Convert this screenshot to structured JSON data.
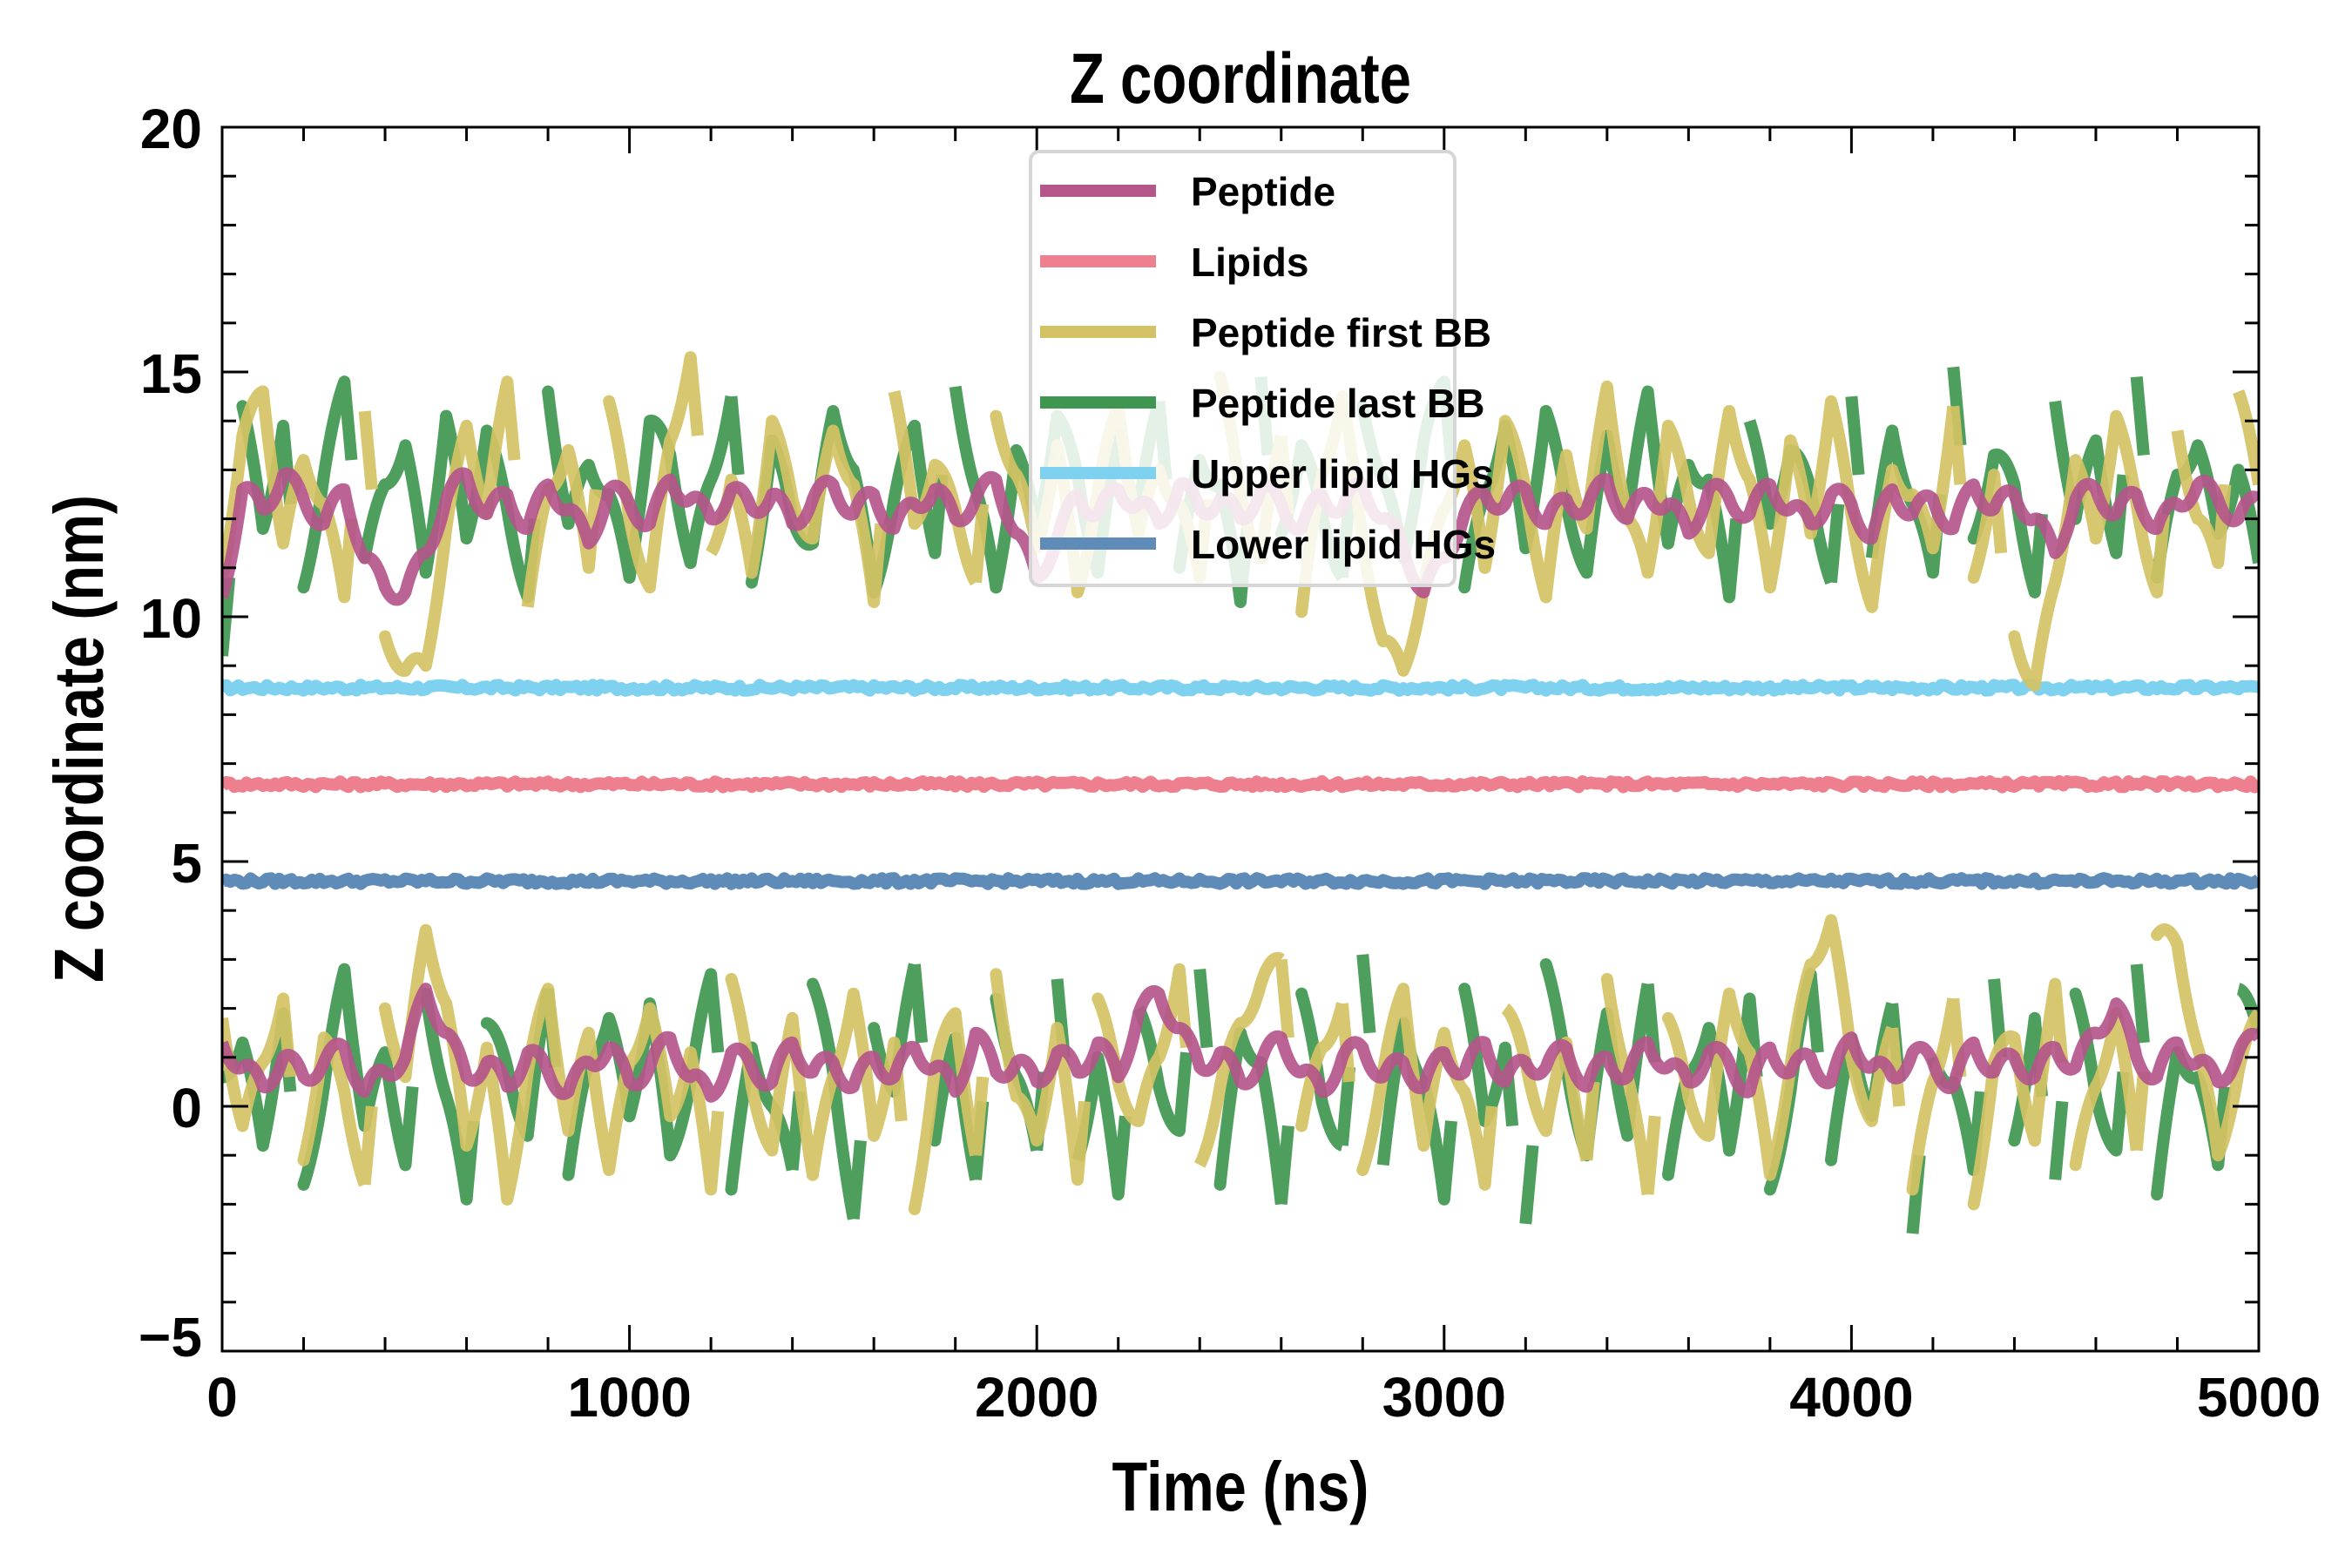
{
  "chart_data": {
    "type": "line",
    "title": "Z coordinate",
    "xlabel": "Time (ns)",
    "ylabel": "Z coordinate (nm)",
    "xlim": [
      0,
      5000
    ],
    "ylim": [
      -5,
      20
    ],
    "xticks": [
      0,
      1000,
      2000,
      3000,
      4000,
      5000
    ],
    "xtick_labels": [
      "0",
      "1000",
      "2000",
      "3000",
      "4000",
      "5000"
    ],
    "yticks": [
      -5,
      0,
      5,
      10,
      15,
      20
    ],
    "ytick_labels": [
      "−5",
      "0",
      "5",
      "10",
      "15",
      "20"
    ],
    "x_minor_step": 200,
    "y_minor_step": 1,
    "grid": false,
    "legend_position": "upper-center",
    "x_step": 50,
    "legend": [
      {
        "label": "Peptide",
        "color": "#B5568B"
      },
      {
        "label": "Lipids",
        "color": "#EE7F8E"
      },
      {
        "label": "Peptide first BB",
        "color": "#D4C365"
      },
      {
        "label": "Peptide last BB",
        "color": "#3F9650"
      },
      {
        "label": "Upper lipid HGs",
        "color": "#7ED2EF"
      },
      {
        "label": "Lower lipid HGs",
        "color": "#5E8BB8"
      }
    ],
    "series": [
      {
        "name": "Upper lipid HGs",
        "color": "#7ED2EF",
        "z": 1,
        "flat": 8.55
      },
      {
        "name": "Lipids",
        "color": "#EE7F8E",
        "z": 2,
        "flat": 6.58
      },
      {
        "name": "Lower lipid HGs",
        "color": "#5E8BB8",
        "z": 3,
        "flat": 4.6
      },
      {
        "name": "Peptide last BB",
        "color": "#3F9650",
        "z": 4,
        "values": [
          9.2,
          14.3,
          11.8,
          13.9,
          10.6,
          12.9,
          14.8,
          11.2,
          12.7,
          13.5,
          10.9,
          14.1,
          11.6,
          13.8,
          12.2,
          10.4,
          14.6,
          11.9,
          13.1,
          12.5,
          10.8,
          14.0,
          13.3,
          11.1,
          12.8,
          14.5,
          10.7,
          13.6,
          12.0,
          11.5,
          14.2,
          13.0,
          10.5,
          12.4,
          13.9,
          11.3,
          14.7,
          12.6,
          10.6,
          13.4,
          11.8,
          14.1,
          12.9,
          10.9,
          13.7,
          12.2,
          14.4,
          11.0,
          13.2,
          12.7,
          10.3,
          14.9,
          11.7,
          13.5,
          12.1,
          10.8,
          14.3,
          12.8,
          11.2,
          13.6,
          14.8,
          10.6,
          12.5,
          13.9,
          11.4,
          14.2,
          12.3,
          10.9,
          13.7,
          12.0,
          14.6,
          11.5,
          13.1,
          12.8,
          10.4,
          14.0,
          11.9,
          13.4,
          12.6,
          10.7,
          14.5,
          11.2,
          13.8,
          12.3,
          10.9,
          15.1,
          11.6,
          13.3,
          12.7,
          10.5,
          14.4,
          12.0,
          13.6,
          11.3,
          14.9,
          10.8,
          12.9,
          13.5,
          11.7,
          13.0,
          11.1
        ],
        "lower_values": [
          0.6,
          1.3,
          -0.8,
          1.9,
          -1.6,
          0.4,
          2.8,
          -0.4,
          1.1,
          -1.2,
          2.3,
          0.2,
          -1.9,
          1.7,
          0.8,
          -0.6,
          2.4,
          -1.4,
          0.9,
          1.8,
          -0.2,
          2.1,
          -1.0,
          0.5,
          2.7,
          -1.7,
          1.2,
          0.0,
          -1.3,
          2.5,
          0.7,
          -2.3,
          1.6,
          0.3,
          2.9,
          -0.7,
          1.4,
          -1.5,
          2.2,
          0.6,
          -0.9,
          2.6,
          -1.1,
          1.0,
          -1.8,
          2.0,
          0.4,
          -0.5,
          2.8,
          -1.6,
          1.5,
          0.9,
          -2.0,
          2.3,
          0.1,
          -0.8,
          3.1,
          -1.2,
          1.7,
          0.5,
          -1.9,
          2.4,
          -0.3,
          1.2,
          -2.4,
          2.9,
          0.8,
          -1.0,
          1.9,
          -0.6,
          2.5,
          -1.4,
          0.7,
          1.6,
          -0.9,
          2.2,
          -1.7,
          0.3,
          2.7,
          -1.1,
          1.4,
          -0.2,
          2.1,
          -2.6,
          1.0,
          0.5,
          -1.3,
          2.6,
          -0.7,
          1.8,
          -1.5,
          2.3,
          0.2,
          -0.9,
          2.9,
          -1.8,
          1.1,
          0.6,
          -1.2,
          2.4,
          1.5
        ]
      },
      {
        "name": "Peptide first BB",
        "color": "#D4C365",
        "z": 5,
        "values": [
          10.8,
          13.7,
          14.6,
          11.5,
          13.2,
          12.3,
          10.4,
          14.2,
          9.6,
          8.9,
          9.0,
          11.8,
          13.9,
          12.1,
          14.8,
          10.2,
          12.6,
          13.4,
          11.0,
          14.4,
          12.0,
          10.6,
          13.6,
          15.3,
          11.3,
          12.8,
          10.9,
          14.0,
          12.4,
          11.6,
          13.8,
          12.7,
          10.3,
          14.6,
          11.9,
          13.1,
          12.2,
          10.7,
          14.1,
          12.9,
          11.4,
          13.5,
          10.5,
          12.6,
          14.3,
          11.7,
          13.0,
          12.3,
          10.8,
          14.9,
          12.5,
          11.2,
          13.7,
          10.1,
          12.9,
          14.5,
          11.5,
          9.5,
          8.9,
          10.6,
          12.2,
          13.5,
          11.0,
          14.0,
          12.6,
          10.4,
          13.3,
          11.8,
          14.7,
          12.0,
          10.9,
          13.9,
          12.4,
          11.3,
          14.2,
          12.8,
          10.6,
          13.6,
          11.7,
          14.4,
          12.1,
          10.2,
          13.0,
          12.5,
          11.4,
          14.3,
          10.8,
          12.9,
          9.6,
          8.6,
          10.7,
          13.2,
          11.6,
          14.1,
          12.3,
          10.5,
          13.8,
          12.0,
          11.1,
          14.6,
          12.7
        ],
        "lower_values": [
          1.8,
          -0.4,
          0.9,
          2.2,
          -1.1,
          1.4,
          0.3,
          -1.6,
          2.0,
          0.6,
          3.6,
          2.1,
          -0.8,
          1.2,
          -1.9,
          0.7,
          2.4,
          -0.5,
          1.5,
          -1.3,
          0.9,
          2.0,
          -0.2,
          1.1,
          -1.7,
          2.6,
          0.4,
          -0.9,
          1.8,
          -1.4,
          0.6,
          2.3,
          -0.6,
          1.3,
          -2.1,
          0.8,
          1.9,
          -1.0,
          2.7,
          0.2,
          -0.7,
          1.6,
          -1.5,
          2.2,
          0.5,
          -0.3,
          1.0,
          2.8,
          -1.2,
          0.4,
          1.7,
          2.5,
          3.0,
          -0.4,
          1.2,
          2.1,
          -1.3,
          0.7,
          2.4,
          -0.8,
          1.5,
          0.3,
          -1.6,
          2.0,
          0.9,
          -0.5,
          1.3,
          -1.1,
          2.6,
          0.6,
          -1.8,
          1.8,
          0.2,
          -0.6,
          2.3,
          1.1,
          -1.4,
          0.8,
          2.9,
          3.8,
          1.0,
          -0.3,
          1.6,
          -1.7,
          0.5,
          2.2,
          -2.0,
          0.9,
          1.4,
          -0.7,
          2.5,
          -1.2,
          0.4,
          1.9,
          -0.9,
          3.5,
          3.3,
          1.2,
          -1.0,
          0.7,
          1.9
        ]
      },
      {
        "name": "Peptide",
        "color": "#B5568B",
        "z": 6,
        "values": [
          10.4,
          12.6,
          12.2,
          12.9,
          12.4,
          11.9,
          12.6,
          11.2,
          10.6,
          10.5,
          11.3,
          12.4,
          12.9,
          12.1,
          12.5,
          11.8,
          12.7,
          12.2,
          11.5,
          12.6,
          12.3,
          11.9,
          12.8,
          12.4,
          12.0,
          12.6,
          12.2,
          12.5,
          11.9,
          12.4,
          12.7,
          12.1,
          12.5,
          11.8,
          12.3,
          12.6,
          12.0,
          12.4,
          12.8,
          11.7,
          10.8,
          11.6,
          12.5,
          12.1,
          12.6,
          12.3,
          11.9,
          12.7,
          12.2,
          12.4,
          12.0,
          12.6,
          12.3,
          11.8,
          12.5,
          12.2,
          12.7,
          12.0,
          11.4,
          10.5,
          11.2,
          12.1,
          12.5,
          12.3,
          12.6,
          11.9,
          12.4,
          12.2,
          12.8,
          12.0,
          12.5,
          12.3,
          11.7,
          12.6,
          12.4,
          12.1,
          12.7,
          12.2,
          11.9,
          12.5,
          12.3,
          11.6,
          12.6,
          12.1,
          12.4,
          11.8,
          12.7,
          12.2,
          12.5,
          12.0,
          11.3,
          12.4,
          12.6,
          12.1,
          12.5,
          11.8,
          12.3,
          12.7,
          12.4,
          12.0,
          12.4
        ],
        "lower_values": [
          1.3,
          0.8,
          0.4,
          1.0,
          0.6,
          0.9,
          1.2,
          0.3,
          0.7,
          1.0,
          2.4,
          1.5,
          0.6,
          0.9,
          0.4,
          1.1,
          0.7,
          0.3,
          0.9,
          1.2,
          0.5,
          0.8,
          1.4,
          0.6,
          0.2,
          1.1,
          0.8,
          0.5,
          1.3,
          0.7,
          0.9,
          0.4,
          1.0,
          0.6,
          1.2,
          0.8,
          0.3,
          1.5,
          0.7,
          0.9,
          0.5,
          1.1,
          0.7,
          1.3,
          0.6,
          1.9,
          2.3,
          1.6,
          0.8,
          1.1,
          0.5,
          0.9,
          1.4,
          0.7,
          0.3,
          1.0,
          1.2,
          0.6,
          0.9,
          0.4,
          1.1,
          0.7,
          1.3,
          0.5,
          0.9,
          0.8,
          1.2,
          0.4,
          1.0,
          0.6,
          1.3,
          0.8,
          0.5,
          1.1,
          0.9,
          0.3,
          1.2,
          0.7,
          1.0,
          0.5,
          1.4,
          0.8,
          0.6,
          1.1,
          0.9,
          0.4,
          1.3,
          0.7,
          1.0,
          0.6,
          1.2,
          0.8,
          1.5,
          2.1,
          1.0,
          0.6,
          1.3,
          0.9,
          0.5,
          1.1,
          1.4
        ]
      }
    ]
  }
}
